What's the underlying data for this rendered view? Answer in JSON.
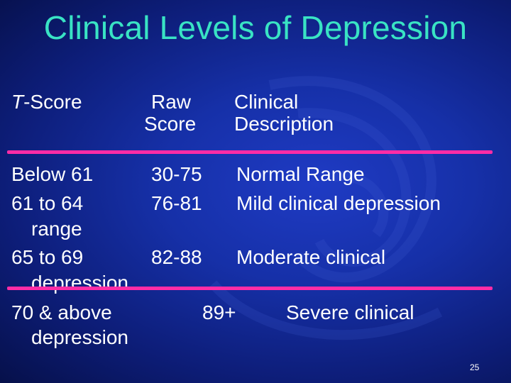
{
  "title": "Clinical Levels of Depression",
  "colors": {
    "title": "#39e3c4",
    "divider": "#ff2ca6",
    "background": "#1630a8",
    "text": "#ffffff"
  },
  "headers": {
    "tscore_prefix": "T",
    "tscore_suffix": "-Score",
    "raw_line1": "Raw",
    "raw_line2": "Score",
    "clinical_line1": "Clinical",
    "clinical_line2": "Description"
  },
  "rows": [
    {
      "tscore": "Below 61",
      "raw": "30-75",
      "description": "Normal Range"
    },
    {
      "tscore": "61 to 64",
      "raw": "76-81",
      "description": "Mild clinical depression",
      "wrap": "range"
    },
    {
      "tscore": "65 to 69",
      "raw": "82-88",
      "description": "Moderate clinical",
      "wrap": "depression"
    },
    {
      "tscore": "70 & above",
      "raw": "89+",
      "description": "Severe clinical",
      "wrap": "depression"
    }
  ],
  "page_number": "25"
}
